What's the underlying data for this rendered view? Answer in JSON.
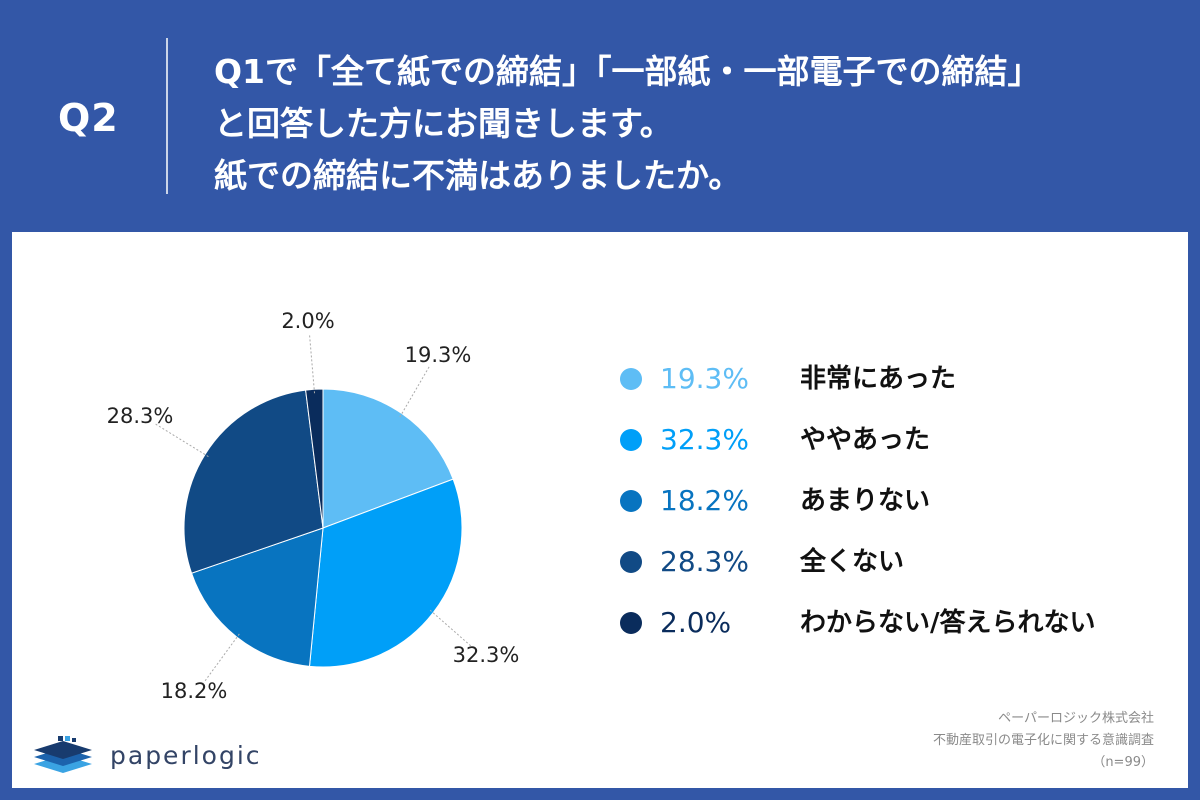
{
  "header": {
    "qnum": "Q2",
    "lines": [
      "Q1で「全て紙での締結」「一部紙・一部電子での締結」",
      "と回答した方にお聞きします。",
      "紙での締結に不満はありましたか。"
    ]
  },
  "chart_data": {
    "type": "pie",
    "title": "",
    "start": "top",
    "direction": "clockwise",
    "slices": [
      {
        "label": "非常にあった",
        "value": 19.3,
        "pct_label": "19.3%",
        "color": "#5ebdf5"
      },
      {
        "label": "ややあった",
        "value": 32.3,
        "pct_label": "32.3%",
        "color": "#009ff8"
      },
      {
        "label": "あまりない",
        "value": 18.2,
        "pct_label": "18.2%",
        "color": "#0874c0"
      },
      {
        "label": "全くない",
        "value": 28.3,
        "pct_label": "28.3%",
        "color": "#114a85"
      },
      {
        "label": "わからない/答えられない",
        "value": 2.0,
        "pct_label": "2.0%",
        "color": "#0a2c5c"
      }
    ],
    "legend_placement": "right"
  },
  "legend": {
    "pct_colors": [
      "#5ebdf5",
      "#009ff8",
      "#0874c0",
      "#114a85",
      "#0a2c5c"
    ]
  },
  "logo": {
    "text": "paperlogic",
    "icon": "paperlogic-stacked-layers-icon"
  },
  "source": {
    "lines": [
      "ペーパーロジック株式会社",
      "不動産取引の電子化に関する意識調査",
      "（n=99）"
    ]
  },
  "colors": {
    "background": "#3357a7",
    "panel": "#ffffff"
  }
}
